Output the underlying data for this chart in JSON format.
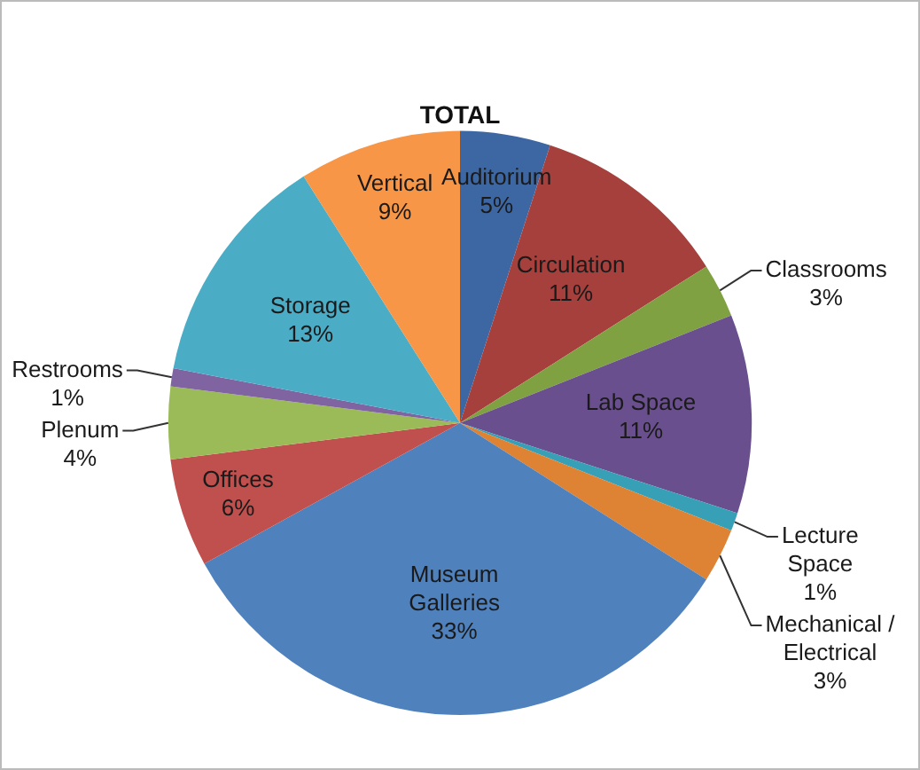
{
  "chart_data": {
    "type": "pie",
    "title": "TOTAL",
    "categories": [
      "Auditorium",
      "Circulation",
      "Classrooms",
      "Lab Space",
      "Lecture Space",
      "Mechanical / Electrical",
      "Museum Galleries",
      "Offices",
      "Plenum",
      "Restrooms",
      "Storage",
      "Vertical"
    ],
    "values": [
      5,
      11,
      3,
      11,
      1,
      3,
      33,
      6,
      4,
      1,
      13,
      9
    ],
    "value_labels": [
      "5%",
      "11%",
      "3%",
      "11%",
      "1%",
      "3%",
      "33%",
      "6%",
      "4%",
      "1%",
      "13%",
      "9%"
    ],
    "colors": [
      "#3d67a3",
      "#a5403d",
      "#80a142",
      "#6a4f8e",
      "#37a0b6",
      "#de8233",
      "#4f81bd",
      "#c0504d",
      "#9bbb59",
      "#8064a2",
      "#4bacc6",
      "#f79646"
    ]
  }
}
